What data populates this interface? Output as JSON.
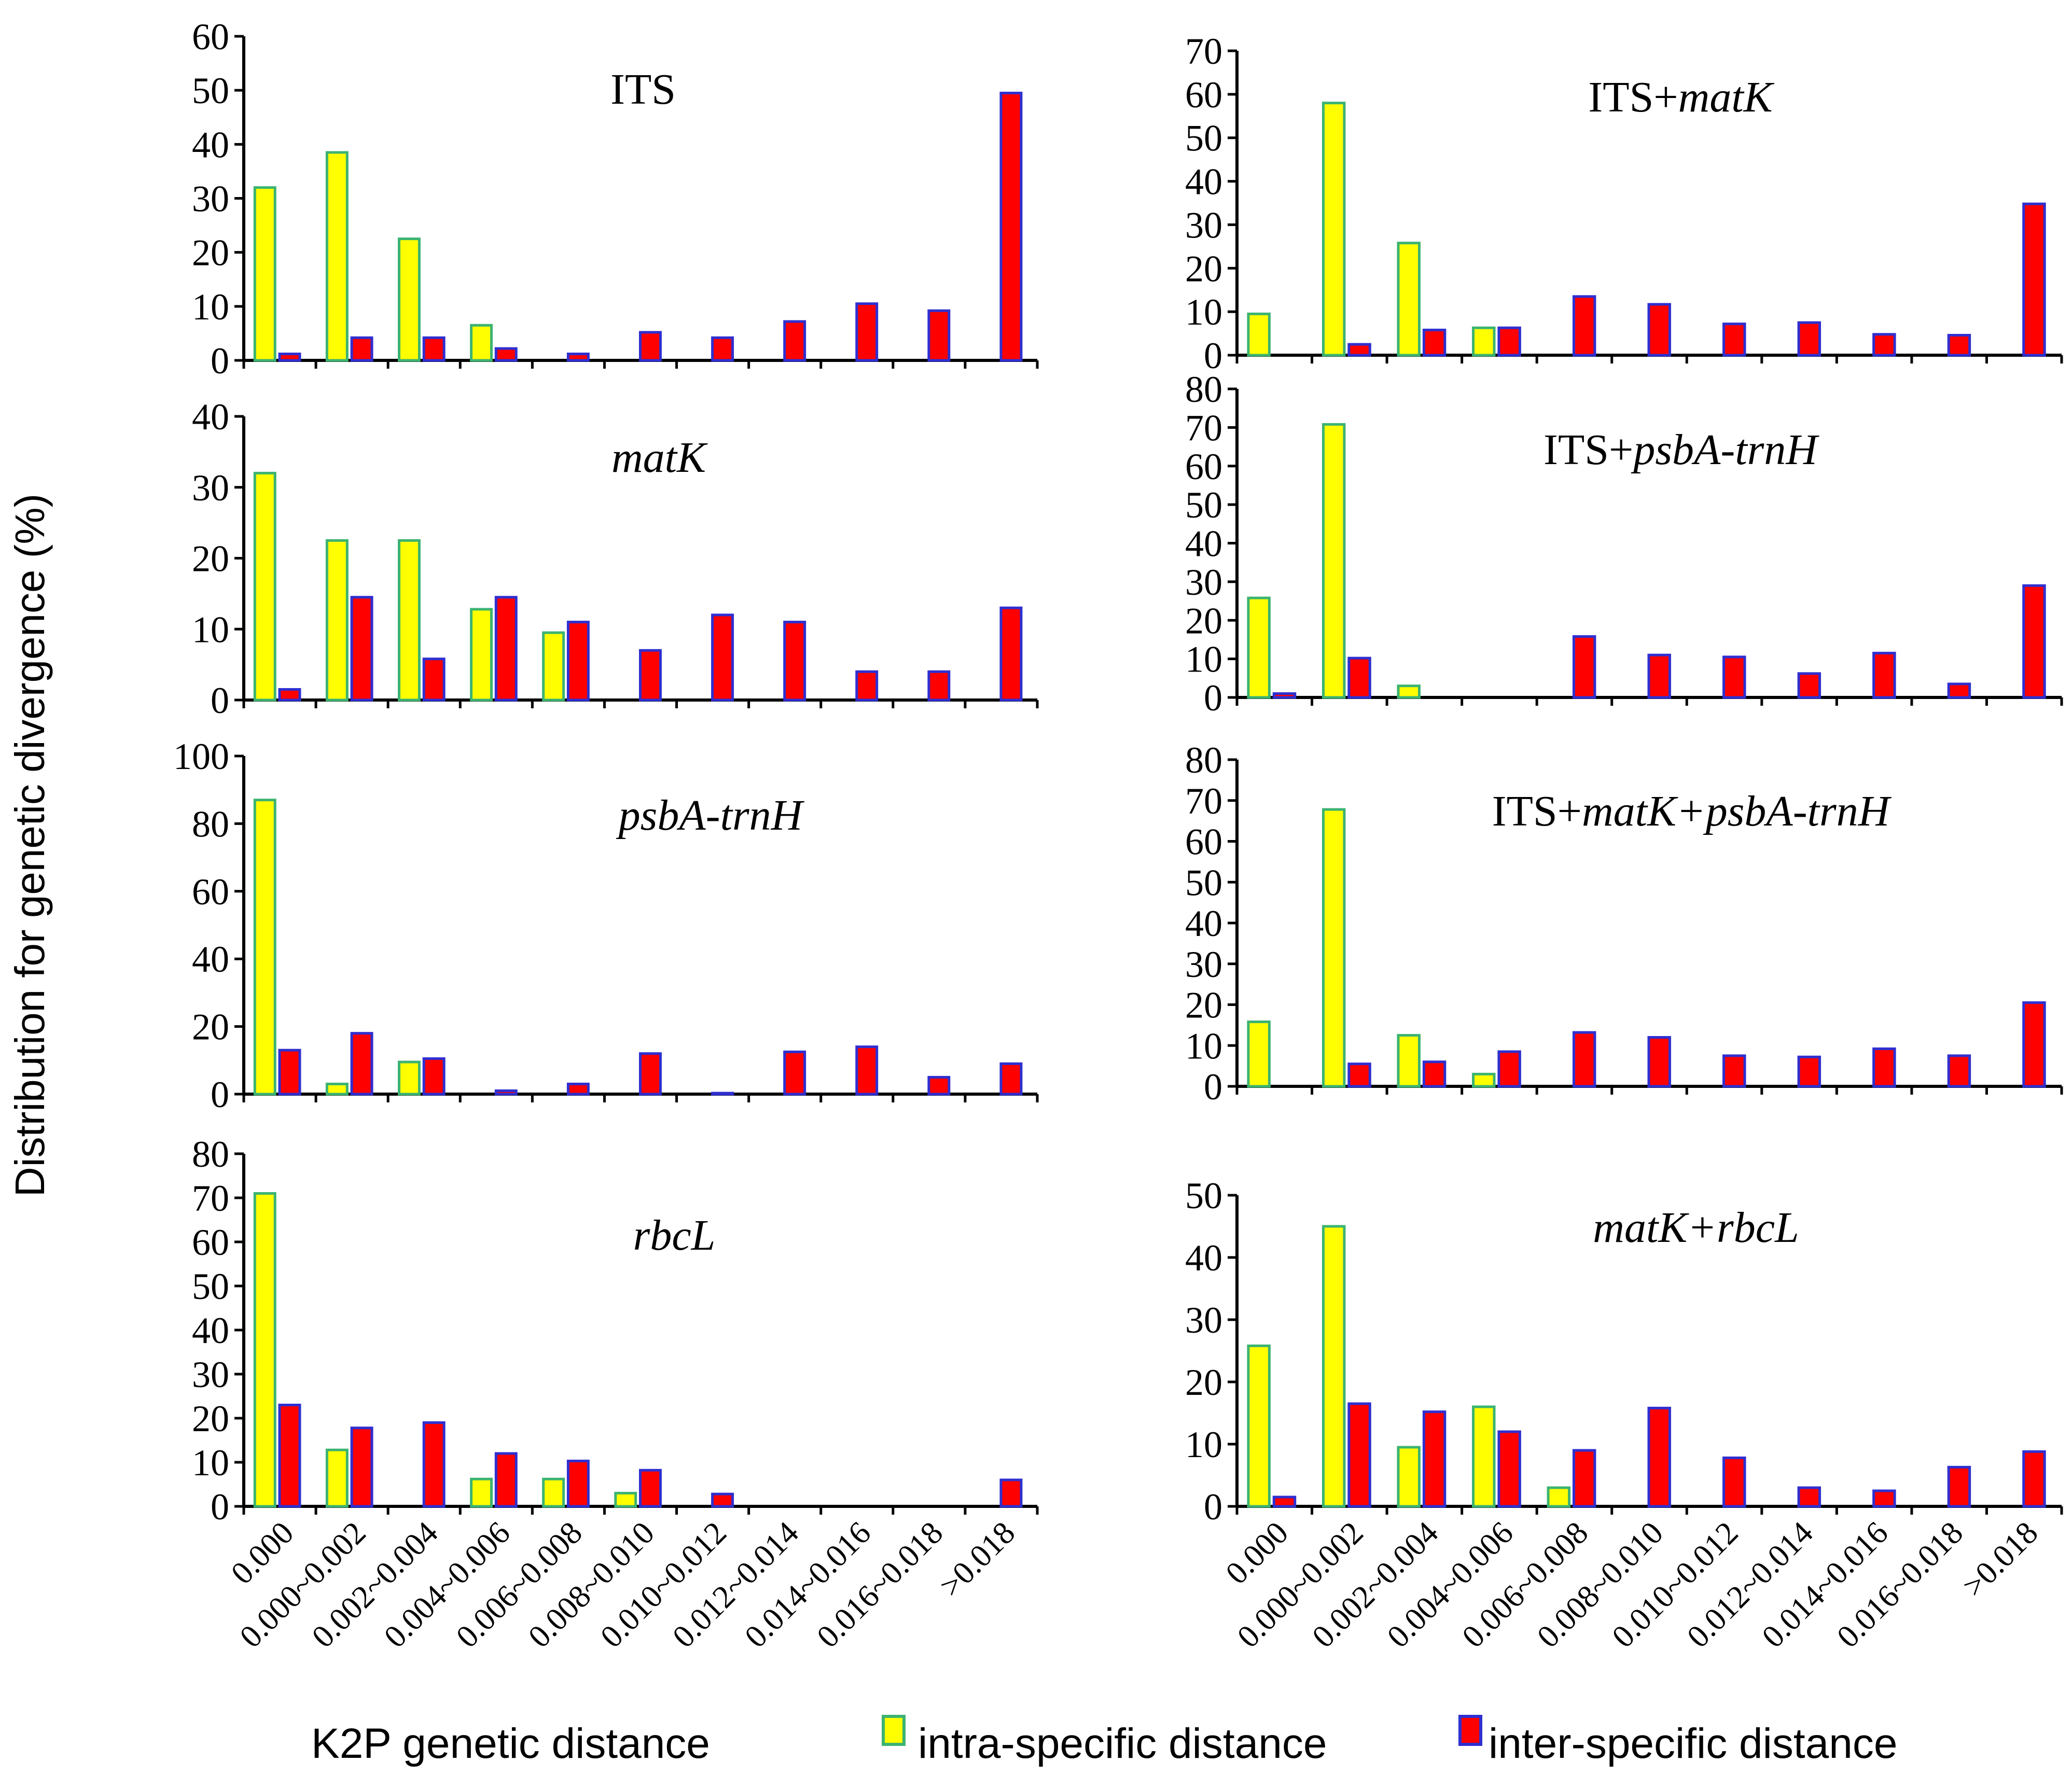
{
  "figure": {
    "ylabel": "Distribution for genetic divergence (%)",
    "xlabel": "K2P genetic distance",
    "legend": {
      "intra": "intra-specific distance",
      "inter": "inter-specific distance"
    },
    "colors": {
      "intra_fill": "#ffff00",
      "intra_stroke": "#3cb371",
      "inter_fill": "#ff0000",
      "inter_stroke": "#2f2fd0"
    }
  },
  "categories": [
    "0.000",
    "0.000~0.002",
    "0.002~0.004",
    "0.004~0.006",
    "0.006~0.008",
    "0.008~0.010",
    "0.010~0.012",
    "0.012~0.014",
    "0.014~0.016",
    "0.016~0.018",
    ">0.018"
  ],
  "chart_data": [
    {
      "type": "bar",
      "title_parts": [
        {
          "text": "ITS",
          "italic": false
        }
      ],
      "xlabel": "K2P genetic distance",
      "ylabel": "Distribution for genetic divergence (%)",
      "ylim": [
        0,
        60
      ],
      "yticks": [
        "0",
        "10",
        "20",
        "30",
        "40",
        "50",
        "60"
      ],
      "series": [
        {
          "name": "intra-specific distance",
          "values": [
            32,
            38.5,
            22.5,
            6.5,
            0,
            0,
            0,
            0,
            0,
            0,
            0
          ]
        },
        {
          "name": "inter-specific distance",
          "values": [
            1.2,
            4.2,
            4.2,
            2.2,
            1.2,
            5.2,
            4.2,
            7.2,
            10.5,
            9.2,
            49.5
          ]
        }
      ]
    },
    {
      "type": "bar",
      "title_parts": [
        {
          "text": "matK",
          "italic": true
        }
      ],
      "xlabel": "K2P genetic distance",
      "ylabel": "Distribution for genetic divergence (%)",
      "ylim": [
        0,
        40
      ],
      "yticks": [
        "0",
        "10",
        "20",
        "30",
        "40"
      ],
      "series": [
        {
          "name": "intra-specific distance",
          "values": [
            32,
            22.5,
            22.5,
            12.8,
            9.5,
            0,
            0,
            0,
            0,
            0,
            0
          ]
        },
        {
          "name": "inter-specific distance",
          "values": [
            1.5,
            14.5,
            5.8,
            14.5,
            11,
            7,
            12,
            11,
            4,
            4,
            13
          ]
        }
      ]
    },
    {
      "type": "bar",
      "title_parts": [
        {
          "text": "psbA-trnH",
          "italic": true
        }
      ],
      "xlabel": "K2P genetic distance",
      "ylabel": "Distribution for genetic divergence (%)",
      "ylim": [
        0,
        100
      ],
      "yticks": [
        "0",
        "20",
        "40",
        "60",
        "80",
        "100"
      ],
      "series": [
        {
          "name": "intra-specific distance",
          "values": [
            87,
            3,
            9.5,
            0,
            0,
            0,
            0,
            0,
            0,
            0,
            0
          ]
        },
        {
          "name": "inter-specific distance",
          "values": [
            13,
            18,
            10.5,
            1,
            3,
            12,
            0.3,
            12.5,
            14,
            5,
            9
          ]
        }
      ]
    },
    {
      "type": "bar",
      "title_parts": [
        {
          "text": "rbcL",
          "italic": true
        }
      ],
      "xlabel": "K2P genetic distance",
      "ylabel": "Distribution for genetic divergence (%)",
      "ylim": [
        0,
        80
      ],
      "yticks": [
        "0",
        "10",
        "20",
        "30",
        "40",
        "50",
        "60",
        "70",
        "80"
      ],
      "series": [
        {
          "name": "intra-specific distance",
          "values": [
            71,
            12.8,
            0,
            6.2,
            6.2,
            3,
            0,
            0,
            0,
            0,
            0
          ]
        },
        {
          "name": "inter-specific distance",
          "values": [
            23,
            17.8,
            19,
            12,
            10.3,
            8.2,
            2.8,
            0,
            0,
            0,
            6
          ]
        }
      ]
    },
    {
      "type": "bar",
      "title_parts": [
        {
          "text": "ITS+",
          "italic": false
        },
        {
          "text": "matK",
          "italic": true
        }
      ],
      "xlabel": "K2P genetic distance",
      "ylabel": "Distribution for genetic divergence (%)",
      "ylim": [
        0,
        70
      ],
      "yticks": [
        "0",
        "10",
        "20",
        "30",
        "40",
        "50",
        "60",
        "70"
      ],
      "series": [
        {
          "name": "intra-specific distance",
          "values": [
            9.5,
            58,
            25.8,
            6.3,
            0,
            0,
            0,
            0,
            0,
            0,
            0
          ]
        },
        {
          "name": "inter-specific distance",
          "values": [
            0,
            2.5,
            5.8,
            6.3,
            13.5,
            11.7,
            7.2,
            7.5,
            4.8,
            4.6,
            34.8
          ]
        }
      ]
    },
    {
      "type": "bar",
      "title_parts": [
        {
          "text": "ITS+",
          "italic": false
        },
        {
          "text": "psbA-trnH",
          "italic": true
        }
      ],
      "xlabel": "K2P genetic distance",
      "ylabel": "Distribution for genetic divergence (%)",
      "ylim": [
        0,
        80
      ],
      "yticks": [
        "0",
        "10",
        "20",
        "30",
        "40",
        "50",
        "60",
        "70",
        "80"
      ],
      "series": [
        {
          "name": "intra-specific distance",
          "values": [
            25.8,
            70.8,
            3,
            0,
            0,
            0,
            0,
            0,
            0,
            0,
            0
          ]
        },
        {
          "name": "inter-specific distance",
          "values": [
            1,
            10.2,
            0,
            0,
            15.8,
            11,
            10.5,
            6.2,
            11.5,
            3.5,
            29
          ]
        }
      ]
    },
    {
      "type": "bar",
      "title_parts": [
        {
          "text": "ITS+",
          "italic": false
        },
        {
          "text": "matK+psbA-trnH",
          "italic": true
        }
      ],
      "xlabel": "K2P genetic distance",
      "ylabel": "Distribution for genetic divergence (%)",
      "ylim": [
        0,
        80
      ],
      "yticks": [
        "0",
        "10",
        "20",
        "30",
        "40",
        "50",
        "60",
        "70",
        "80"
      ],
      "series": [
        {
          "name": "intra-specific distance",
          "values": [
            15.8,
            67.8,
            12.5,
            3,
            0,
            0,
            0,
            0,
            0,
            0,
            0
          ]
        },
        {
          "name": "inter-specific distance",
          "values": [
            0,
            5.5,
            6,
            8.5,
            13.2,
            12,
            7.5,
            7.2,
            9.2,
            7.5,
            20.5
          ]
        }
      ]
    },
    {
      "type": "bar",
      "title_parts": [
        {
          "text": "matK+rbcL",
          "italic": true
        }
      ],
      "xlabel": "K2P genetic distance",
      "ylabel": "Distribution for genetic divergence (%)",
      "ylim": [
        0,
        50
      ],
      "yticks": [
        "0",
        "10",
        "20",
        "30",
        "40",
        "50"
      ],
      "series": [
        {
          "name": "intra-specific distance",
          "values": [
            25.8,
            45,
            9.5,
            16,
            3,
            0,
            0,
            0,
            0,
            0,
            0
          ]
        },
        {
          "name": "inter-specific distance",
          "values": [
            1.5,
            16.5,
            15.2,
            12,
            9,
            15.8,
            7.8,
            3,
            2.5,
            6.3,
            8.8
          ]
        }
      ]
    }
  ]
}
